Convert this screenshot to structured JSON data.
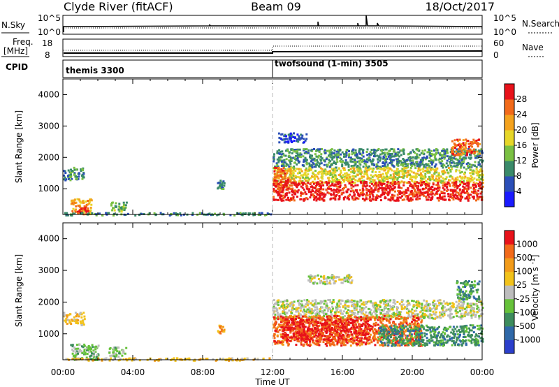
{
  "header": {
    "station": "Clyde River (fitACF)",
    "beam": "Beam 09",
    "date": "18/Oct/2017"
  },
  "status_panels": {
    "nsky_label": "N.Sky",
    "nsky_ticks": [
      "10^5",
      "10^0"
    ],
    "nsearch_label": "N.Search",
    "nsearch_ticks": [
      "10^5",
      "10^0"
    ],
    "freq_label": "Freq.",
    "freq_unit": "[MHz]",
    "freq_ticks": [
      "18",
      "8"
    ],
    "nave_label": "Nave",
    "nave_ticks": [
      "60",
      "0"
    ],
    "cpid_label": "CPID",
    "programs": [
      {
        "name": "themis 3300",
        "start_hour": 0,
        "end_hour": 12
      },
      {
        "name": "twofsound (1-min) 3505",
        "start_hour": 12,
        "end_hour": 24
      }
    ]
  },
  "chart_data": [
    {
      "type": "heatmap",
      "parameter": "Power",
      "xlabel": "",
      "ylabel": "Slant Range [km]",
      "xlim": [
        0,
        24
      ],
      "ylim": [
        180,
        4500
      ],
      "y_ticks": [
        1000,
        2000,
        3000,
        4000
      ],
      "colorbar": {
        "label": "Power [dB]",
        "tick_labels": [
          "4",
          "8",
          "12",
          "16",
          "20",
          "24",
          "28"
        ],
        "colors": [
          "#1a1aff",
          "#2b4fb8",
          "#3a8a6a",
          "#7ac043",
          "#e6d628",
          "#f4a21d",
          "#f26a1a",
          "#e8121a"
        ]
      },
      "regions": [
        {
          "t0": 0.0,
          "t1": 1.2,
          "r0": 1300,
          "r1": 1700,
          "level": 2
        },
        {
          "t0": 0.4,
          "t1": 1.6,
          "r0": 200,
          "r1": 700,
          "level": 5
        },
        {
          "t0": 0.8,
          "t1": 1.4,
          "r0": 250,
          "r1": 500,
          "level": 7
        },
        {
          "t0": 2.6,
          "t1": 3.6,
          "r0": 300,
          "r1": 600,
          "level": 3
        },
        {
          "t0": 8.8,
          "t1": 9.2,
          "r0": 1000,
          "r1": 1300,
          "level": 2
        },
        {
          "t0": 0.0,
          "t1": 11.9,
          "r0": 180,
          "r1": 260,
          "level": 2
        },
        {
          "t0": 12.0,
          "t1": 24.0,
          "r0": 1700,
          "r1": 2300,
          "level": 2
        },
        {
          "t0": 12.3,
          "t1": 14.0,
          "r0": 2500,
          "r1": 2800,
          "level": 1
        },
        {
          "t0": 22.2,
          "t1": 23.8,
          "r0": 2100,
          "r1": 2600,
          "level": 6
        },
        {
          "t0": 12.0,
          "t1": 24.0,
          "r0": 1200,
          "r1": 1700,
          "level": 4
        },
        {
          "t0": 12.0,
          "t1": 24.0,
          "r0": 650,
          "r1": 1250,
          "level": 7
        },
        {
          "t0": 12.0,
          "t1": 13.0,
          "r0": 900,
          "r1": 1700,
          "level": 6
        }
      ]
    },
    {
      "type": "heatmap",
      "parameter": "Velocity",
      "xlabel": "Time UT",
      "ylabel": "Slant Range [km]",
      "xlim": [
        0,
        24
      ],
      "ylim": [
        180,
        4500
      ],
      "y_ticks": [
        1000,
        2000,
        3000,
        4000
      ],
      "x_tick_labels": [
        "00:00",
        "04:00",
        "08:00",
        "12:00",
        "16:00",
        "20:00",
        "00:00"
      ],
      "colorbar": {
        "label": "Velocity [m s^-1]",
        "tick_labels": [
          "1000",
          "500",
          "100",
          "25",
          "-25",
          "-100",
          "-500",
          "-1000"
        ],
        "colors": [
          "#2b3fcc",
          "#2f68a8",
          "#3d8c5d",
          "#66c23a",
          "#bdbdbd",
          "#f2c21a",
          "#f29b1a",
          "#f26a1a",
          "#e8121a"
        ]
      },
      "regions": [
        {
          "t0": 0.0,
          "t1": 1.2,
          "r0": 1300,
          "r1": 1700,
          "level": 5
        },
        {
          "t0": 0.4,
          "t1": 2.0,
          "r0": 200,
          "r1": 700,
          "level": 3
        },
        {
          "t0": 2.6,
          "t1": 3.6,
          "r0": 300,
          "r1": 600,
          "level": 3
        },
        {
          "t0": 8.8,
          "t1": 9.2,
          "r0": 1000,
          "r1": 1300,
          "level": 6
        },
        {
          "t0": 0.0,
          "t1": 11.9,
          "r0": 180,
          "r1": 260,
          "level": 5
        },
        {
          "t0": 14.0,
          "t1": 16.5,
          "r0": 2600,
          "r1": 2900,
          "level": 4
        },
        {
          "t0": 12.0,
          "t1": 24.0,
          "r0": 1500,
          "r1": 2100,
          "level": 4
        },
        {
          "t0": 12.0,
          "t1": 20.5,
          "r0": 650,
          "r1": 1600,
          "level": 7
        },
        {
          "t0": 12.5,
          "t1": 17.5,
          "r0": 800,
          "r1": 1500,
          "level": 8
        },
        {
          "t0": 18.0,
          "t1": 24.0,
          "r0": 650,
          "r1": 1300,
          "level": 2
        },
        {
          "t0": 22.5,
          "t1": 23.8,
          "r0": 2100,
          "r1": 2700,
          "level": 2
        }
      ]
    }
  ]
}
